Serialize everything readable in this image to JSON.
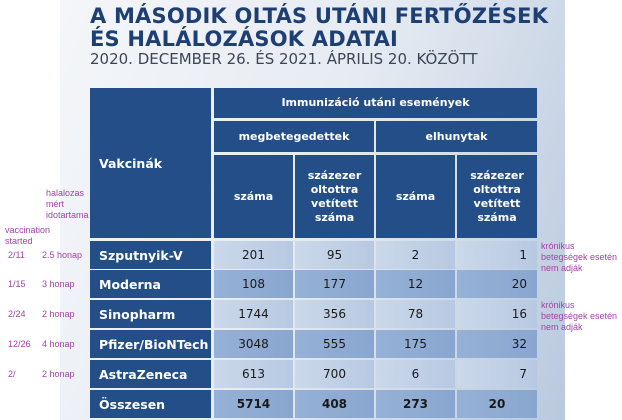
{
  "title_line1": "A MÁSODIK OLTÁS UTÁNI FERTŐZÉSEK",
  "title_line2": "ÉS HALÁLOZÁSOK ADATAI",
  "subtitle": "2020. DECEMBER 26. ÉS 2021. ÁPRILIS 20. KÖZÖTT",
  "header": {
    "vaccines": "Vakcinák",
    "group": "Immunizáció utáni események",
    "sick": "megbetegedettek",
    "dead": "elhunytak",
    "count": "száma",
    "per100k": "százezer oltottra vetített száma"
  },
  "rows": [
    {
      "name": "Szputnyik-V",
      "c1": "201",
      "c2": "95",
      "c3": "2",
      "c4": "1",
      "started": "2/11",
      "duration": "2.5 honap"
    },
    {
      "name": "Moderna",
      "c1": "108",
      "c2": "177",
      "c3": "12",
      "c4": "20",
      "started": "1/15",
      "duration": "3 honap"
    },
    {
      "name": "Sinopharm",
      "c1": "1744",
      "c2": "356",
      "c3": "78",
      "c4": "16",
      "started": "2/24",
      "duration": "2 honap"
    },
    {
      "name": "Pfizer/BioNTech",
      "c1": "3048",
      "c2": "555",
      "c3": "175",
      "c4": "32",
      "started": "12/26",
      "duration": "4 honap"
    },
    {
      "name": "AstraZeneca",
      "c1": "613",
      "c2": "700",
      "c3": "6",
      "c4": "7",
      "started": "2/",
      "duration": "2 honap"
    },
    {
      "name": "Összesen",
      "c1": "5714",
      "c2": "408",
      "c3": "273",
      "c4": "20"
    }
  ],
  "annotations": {
    "duration_header": "halalozas mért idotartama",
    "started_header": "vaccination started",
    "chronic_note": "krónikus betegségek esetén nem adják"
  }
}
